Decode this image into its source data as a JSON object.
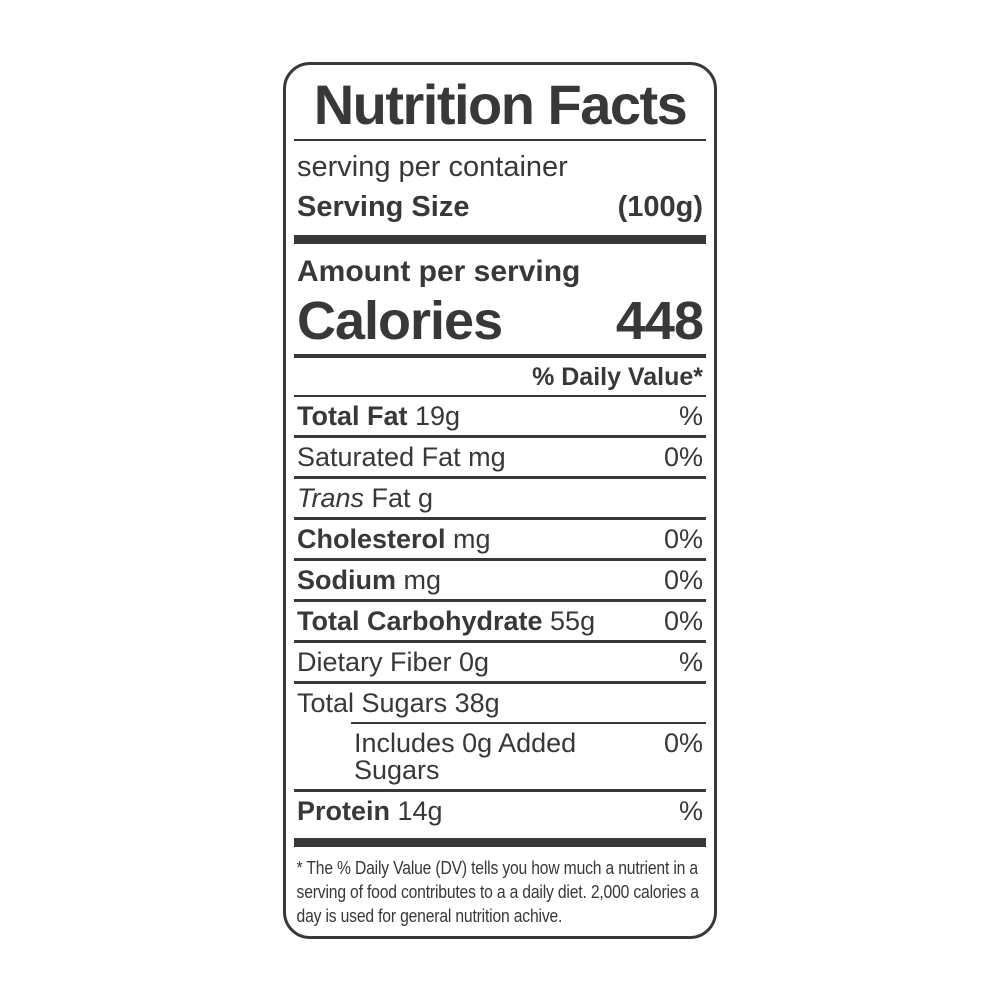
{
  "label": {
    "title": "Nutrition Facts",
    "serving_per_container": "serving per container",
    "serving_size_label": "Serving Size",
    "serving_size_value": "(100g)",
    "amount_per_serving": "Amount per serving",
    "calories_label": "Calories",
    "calories_value": "448",
    "daily_value_header": "% Daily Value*",
    "rows": [
      {
        "italic": "",
        "bold": "Total Fat",
        "regular": " 19g",
        "dv": "%"
      },
      {
        "italic": "",
        "bold": "",
        "regular": "Saturated Fat mg",
        "dv": "0%"
      },
      {
        "italic": "Trans",
        "bold": "",
        "regular": " Fat g",
        "dv": ""
      },
      {
        "italic": "",
        "bold": "Cholesterol",
        "regular": " mg",
        "dv": "0%"
      },
      {
        "italic": "",
        "bold": "Sodium",
        "regular": " mg",
        "dv": "0%"
      },
      {
        "italic": "",
        "bold": "Total Carbohydrate",
        "regular": " 55g",
        "dv": "0%"
      },
      {
        "italic": "",
        "bold": "",
        "regular": "Dietary Fiber 0g",
        "dv": "%"
      },
      {
        "italic": "",
        "bold": "",
        "regular": "Total Sugars 38g",
        "dv": ""
      },
      {
        "italic": "",
        "bold": "",
        "regular": "Includes 0g Added Sugars",
        "dv": "0%"
      },
      {
        "italic": "",
        "bold": "Protein",
        "regular": " 14g",
        "dv": "%"
      }
    ],
    "footnote": "* The % Daily Value (DV) tells you how much a nutrient in a serving of food contributes to a a daily diet. 2,000 calories a day is used for general nutrition achive.",
    "colors": {
      "ink": "#38383a",
      "background": "#ffffff"
    }
  }
}
